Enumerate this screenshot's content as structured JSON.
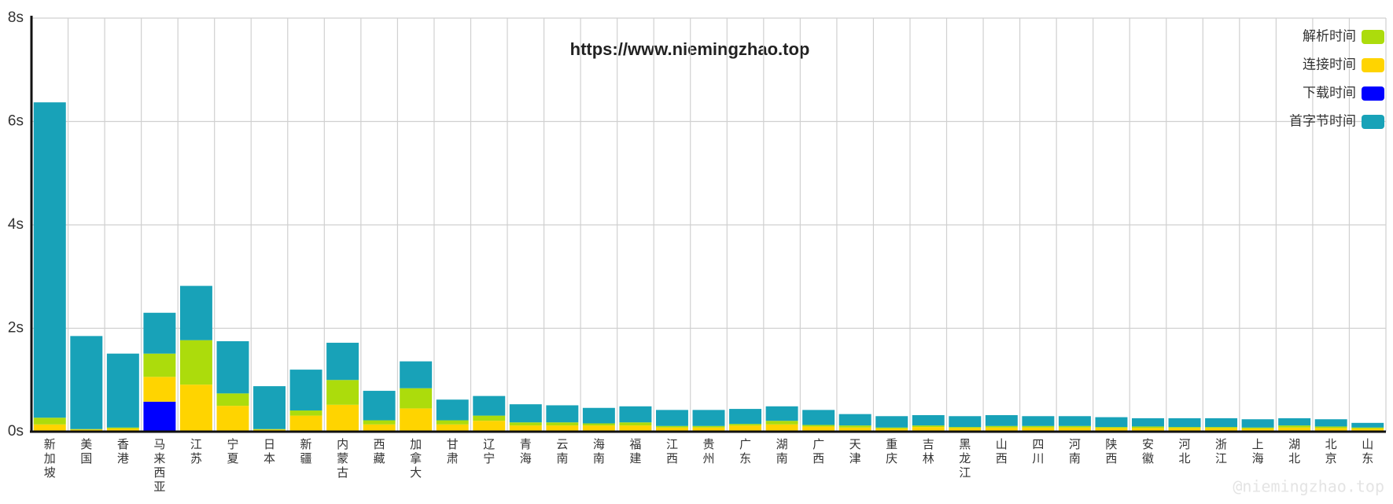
{
  "chart_data": {
    "type": "bar",
    "stacked": true,
    "title": "https://www.niemingzhao.top",
    "watermark": "@niemingzhao.top",
    "categories": [
      "新加坡",
      "美国",
      "香港",
      "马来西亚",
      "江苏",
      "宁夏",
      "日本",
      "新疆",
      "内蒙古",
      "西藏",
      "加拿大",
      "甘肃",
      "辽宁",
      "青海",
      "云南",
      "海南",
      "福建",
      "江西",
      "贵州",
      "广东",
      "湖南",
      "广西",
      "天津",
      "重庆",
      "吉林",
      "黑龙江",
      "山西",
      "四川",
      "河南",
      "陕西",
      "安徽",
      "河北",
      "浙江",
      "上海",
      "湖北",
      "北京",
      "山东"
    ],
    "series": [
      {
        "name": "解析时间",
        "color": "#acdc0c",
        "values": [
          0.13,
          0.01,
          0.02,
          0.45,
          0.86,
          0.24,
          0.01,
          0.1,
          0.48,
          0.08,
          0.39,
          0.08,
          0.1,
          0.06,
          0.06,
          0.04,
          0.06,
          0.03,
          0.03,
          0.03,
          0.07,
          0.03,
          0.04,
          0.02,
          0.03,
          0.02,
          0.03,
          0.03,
          0.03,
          0.02,
          0.03,
          0.02,
          0.02,
          0.02,
          0.04,
          0.03,
          0.02
        ]
      },
      {
        "name": "连接时间",
        "color": "#ffd400",
        "values": [
          0.12,
          0.02,
          0.04,
          0.48,
          0.89,
          0.48,
          0.02,
          0.29,
          0.5,
          0.12,
          0.43,
          0.12,
          0.19,
          0.1,
          0.1,
          0.1,
          0.1,
          0.06,
          0.06,
          0.1,
          0.12,
          0.08,
          0.06,
          0.04,
          0.07,
          0.05,
          0.06,
          0.06,
          0.06,
          0.05,
          0.05,
          0.05,
          0.05,
          0.04,
          0.06,
          0.05,
          0.04
        ]
      },
      {
        "name": "下载时间",
        "color": "#0000ff",
        "values": [
          0.02,
          0.02,
          0.02,
          0.58,
          0.02,
          0.02,
          0.02,
          0.02,
          0.02,
          0.02,
          0.02,
          0.02,
          0.02,
          0.02,
          0.02,
          0.02,
          0.02,
          0.02,
          0.02,
          0.02,
          0.02,
          0.02,
          0.02,
          0.02,
          0.02,
          0.02,
          0.02,
          0.02,
          0.02,
          0.02,
          0.02,
          0.02,
          0.02,
          0.02,
          0.02,
          0.02,
          0.02
        ]
      },
      {
        "name": "首字节时间",
        "color": "#18a2b8",
        "values": [
          6.1,
          1.8,
          1.43,
          0.79,
          1.05,
          1.01,
          0.83,
          0.79,
          0.72,
          0.57,
          0.52,
          0.4,
          0.38,
          0.35,
          0.33,
          0.3,
          0.31,
          0.31,
          0.31,
          0.29,
          0.28,
          0.29,
          0.22,
          0.22,
          0.2,
          0.21,
          0.21,
          0.19,
          0.19,
          0.19,
          0.16,
          0.17,
          0.17,
          0.16,
          0.14,
          0.14,
          0.09
        ]
      }
    ],
    "ylim": [
      0,
      8
    ],
    "yticks": [
      {
        "value": 0,
        "label": "0s"
      },
      {
        "value": 2,
        "label": "2s"
      },
      {
        "value": 4,
        "label": "4s"
      },
      {
        "value": 6,
        "label": "6s"
      },
      {
        "value": 8,
        "label": "8s"
      }
    ],
    "grid": true,
    "legend": "top-right"
  }
}
